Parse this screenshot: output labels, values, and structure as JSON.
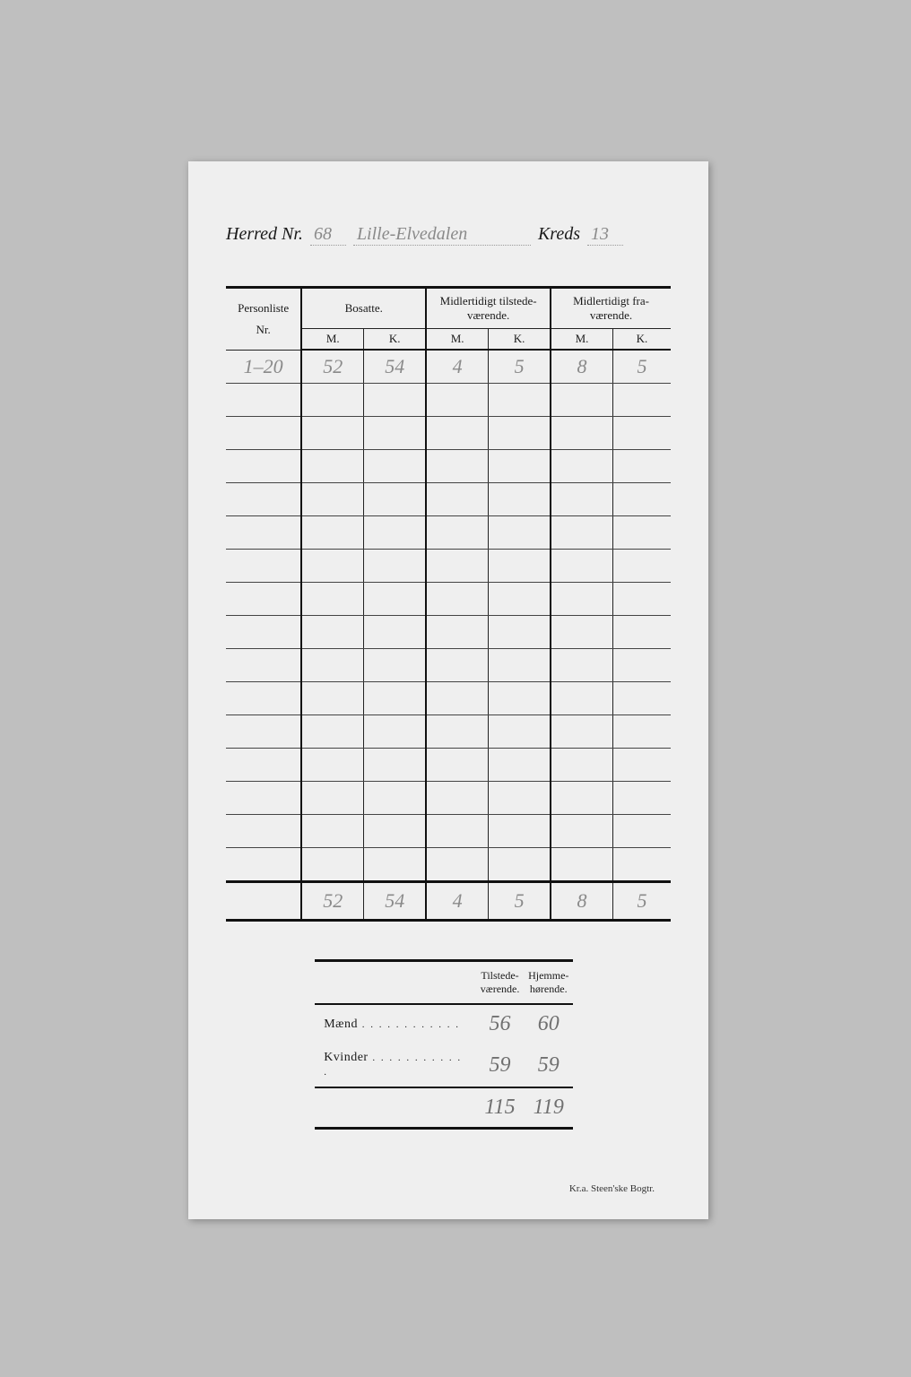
{
  "header": {
    "herred_label": "Herred  Nr.",
    "herred_nr": "68",
    "herred_name": "Lille-Elvedalen",
    "kreds_label": "Kreds",
    "kreds_nr": "13"
  },
  "main_table": {
    "type": "table",
    "columns": {
      "personliste": "Personliste\nNr.",
      "bosatte": "Bosatte.",
      "midl_tilstede": "Midlertidigt tilstede-\nværende.",
      "midl_fra": "Midlertidigt fra-\nværende.",
      "m": "M.",
      "k": "K."
    },
    "data_row": {
      "nr": "1–20",
      "bosatte_m": "52",
      "bosatte_k": "54",
      "til_m": "4",
      "til_k": "5",
      "fra_m": "8",
      "fra_k": "5"
    },
    "blank_rows": 15,
    "totals": {
      "bosatte_m": "52",
      "bosatte_k": "54",
      "til_m": "4",
      "til_k": "5",
      "fra_m": "8",
      "fra_k": "5"
    }
  },
  "summary_table": {
    "type": "table",
    "cols": {
      "tilstede": "Tilstede-\nværende.",
      "hjemme": "Hjemme-\nhørende."
    },
    "rows": {
      "maend_label": "Mænd",
      "kvinder_label": "Kvinder",
      "maend_til": "56",
      "maend_hj": "60",
      "kvinder_til": "59",
      "kvinder_hj": "59",
      "total_til": "115",
      "total_hj": "119"
    }
  },
  "footer": "Kr.a.   Steen'ske Bogtr.",
  "colors": {
    "page_bg": "#bfbfbf",
    "paper_bg": "#efefef",
    "ink": "#1a1a1a",
    "handwriting": "#8a8a8a",
    "rule": "#111111"
  },
  "typography": {
    "printed_font": "Times New Roman serif",
    "handwriting_font": "cursive script",
    "header_fontsize_pt": 15,
    "table_header_fontsize_pt": 10,
    "handwriting_fontsize_pt": 17
  }
}
